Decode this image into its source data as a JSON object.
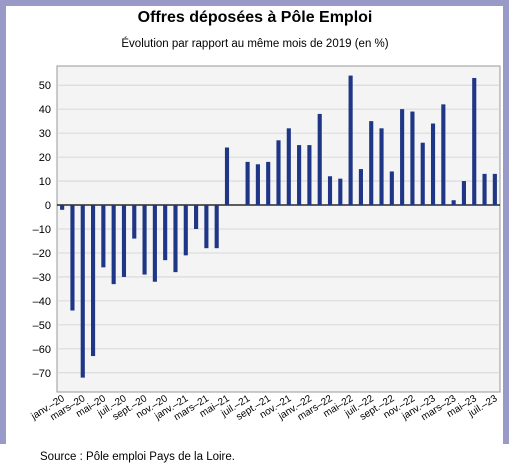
{
  "chart_data": {
    "type": "bar",
    "title": "Offres déposées à Pôle Emploi",
    "subtitle": "Évolution par rapport au même mois de 2019 (en %)",
    "source": "Source : Pôle emploi Pays de la Loire.",
    "color": "#1f3585",
    "categories": [
      "janv.–20",
      null,
      "mars–20",
      null,
      "mai–20",
      null,
      "juil.–20",
      null,
      "sept.–20",
      null,
      "nov.–20",
      null,
      "janv.–21",
      null,
      "mars–21",
      null,
      "mai–21",
      null,
      "juil.–21",
      null,
      "sept.–21",
      null,
      "nov.–21",
      null,
      "janv.–22",
      null,
      "mars–22",
      null,
      "mai–22",
      null,
      "juil.–22",
      null,
      "sept.–22",
      null,
      "nov.–22",
      null,
      "janv.–23",
      null,
      "mars–23",
      null,
      "mai–23",
      null,
      "juil.–23"
    ],
    "values": [
      -2,
      -44,
      -72,
      -63,
      -26,
      -33,
      -30,
      -14,
      -29,
      -32,
      -23,
      -28,
      -21,
      -10,
      -18,
      -18,
      24,
      null,
      18,
      17,
      18,
      27,
      32,
      25,
      25,
      38,
      12,
      11,
      54,
      15,
      35,
      32,
      14,
      40,
      39,
      26,
      34,
      42,
      2,
      10,
      53,
      13,
      13
    ],
    "ylim": [
      -78,
      58
    ],
    "yticks": [
      {
        "value": -70,
        "label": "–70"
      },
      {
        "value": -60,
        "label": "–60"
      },
      {
        "value": -50,
        "label": "–50"
      },
      {
        "value": -40,
        "label": "–40"
      },
      {
        "value": -30,
        "label": "–30"
      },
      {
        "value": -20,
        "label": "–20"
      },
      {
        "value": -10,
        "label": "–10"
      },
      0,
      10,
      20,
      30,
      40,
      50
    ],
    "grid": true
  }
}
